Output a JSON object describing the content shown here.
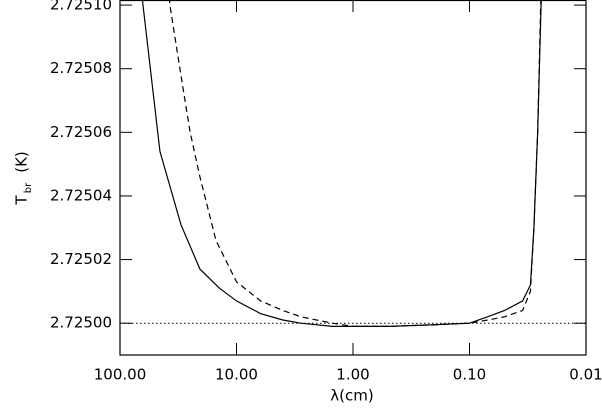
{
  "chart_data": {
    "type": "line",
    "xlabel": "λ(cm)",
    "ylabel": {
      "main": "T",
      "sub": "br",
      "unit": "(K)"
    },
    "xscale": "log",
    "xlim": [
      100,
      0.01
    ],
    "xticks": [
      {
        "value": 100,
        "label": "100.00"
      },
      {
        "value": 10,
        "label": "10.00"
      },
      {
        "value": 1,
        "label": "1.00"
      },
      {
        "value": 0.1,
        "label": "0.10"
      },
      {
        "value": 0.01,
        "label": "0.01"
      }
    ],
    "ylim": [
      2.72499,
      2.7251016
    ],
    "yticks": [
      {
        "value": 2.725,
        "label": "2.72500"
      },
      2.72502,
      2.72504,
      2.72506,
      2.72508,
      {
        "value": 2.7251,
        "label": "2.72510"
      }
    ],
    "reference_line": {
      "value": 2.725,
      "style": "dotted",
      "color": "#000000"
    },
    "series": [
      {
        "color": "#000000",
        "dash": "solid",
        "x": [
          70,
          63.5,
          45.4,
          30,
          20.6,
          14,
          10,
          6.2,
          4,
          2.8,
          1.5,
          1,
          0.5,
          0.2,
          0.1,
          0.07,
          0.05,
          0.035,
          0.03,
          0.028,
          0.026,
          0.0243,
          0.023
        ],
        "values": [
          2.725115,
          2.7251,
          2.725054,
          2.725031,
          2.725017,
          2.725011,
          2.725007,
          2.725003,
          2.725001,
          2.725,
          2.724999,
          2.724999,
          2.724999,
          2.7249995,
          2.725,
          2.725002,
          2.725004,
          2.725007,
          2.725012,
          2.72503,
          2.72506,
          2.7251,
          2.72512
        ]
      },
      {
        "color": "#000000",
        "dash": "dashed",
        "x": [
          40,
          37.3,
          30,
          25,
          20.6,
          15,
          10,
          6.2,
          4,
          2.8,
          1.5,
          1,
          0.5,
          0.2,
          0.1,
          0.07,
          0.05,
          0.035,
          0.03,
          0.028,
          0.026,
          0.0245,
          0.023
        ],
        "values": [
          2.725115,
          2.7251,
          2.725078,
          2.72506,
          2.725046,
          2.725026,
          2.725013,
          2.725007,
          2.725004,
          2.725002,
          2.725,
          2.724999,
          2.724999,
          2.7249995,
          2.725,
          2.725001,
          2.725002,
          2.725004,
          2.72501,
          2.72503,
          2.72506,
          2.7251,
          2.72512
        ]
      }
    ]
  }
}
